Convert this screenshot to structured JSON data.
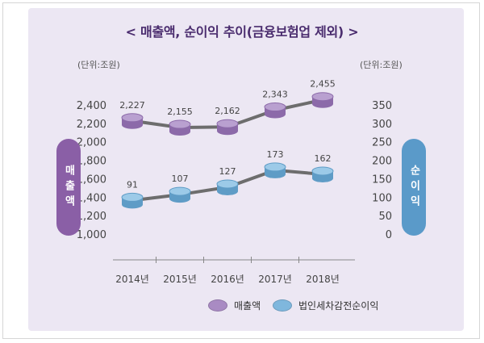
{
  "title": "< 매출액, 순이익 추이(금융보험업 제외) >",
  "left_unit": "(단위:조원)",
  "right_unit": "(단위:조원)",
  "left_axis_label": "매출액",
  "right_axis_label": "순이익",
  "colors": {
    "revenue": "#a98bc3",
    "profit": "#7fb7dd",
    "panel": "#ece7f3"
  },
  "chart_data": {
    "type": "line",
    "categories": [
      "2014년",
      "2015년",
      "2016년",
      "2017년",
      "2018년"
    ],
    "series": [
      {
        "name": "매출액",
        "axis": "left",
        "values": [
          2227,
          2155,
          2162,
          2343,
          2455
        ],
        "labels": [
          "2,227",
          "2,155",
          "2,162",
          "2,343",
          "2,455"
        ]
      },
      {
        "name": "법인세차감전순이익",
        "axis": "right",
        "values": [
          91,
          107,
          127,
          173,
          162
        ],
        "labels": [
          "91",
          "107",
          "127",
          "173",
          "162"
        ]
      }
    ],
    "left_axis": {
      "ticks": [
        "2,400",
        "2,200",
        "2,000",
        "1,800",
        "1,600",
        "1,400",
        "1,200",
        "1,000"
      ],
      "ylim": [
        1000,
        2400
      ]
    },
    "right_axis": {
      "ticks": [
        "350",
        "300",
        "250",
        "200",
        "150",
        "100",
        "50",
        "0"
      ],
      "ylim": [
        0,
        350
      ]
    },
    "legend": "bottom"
  }
}
